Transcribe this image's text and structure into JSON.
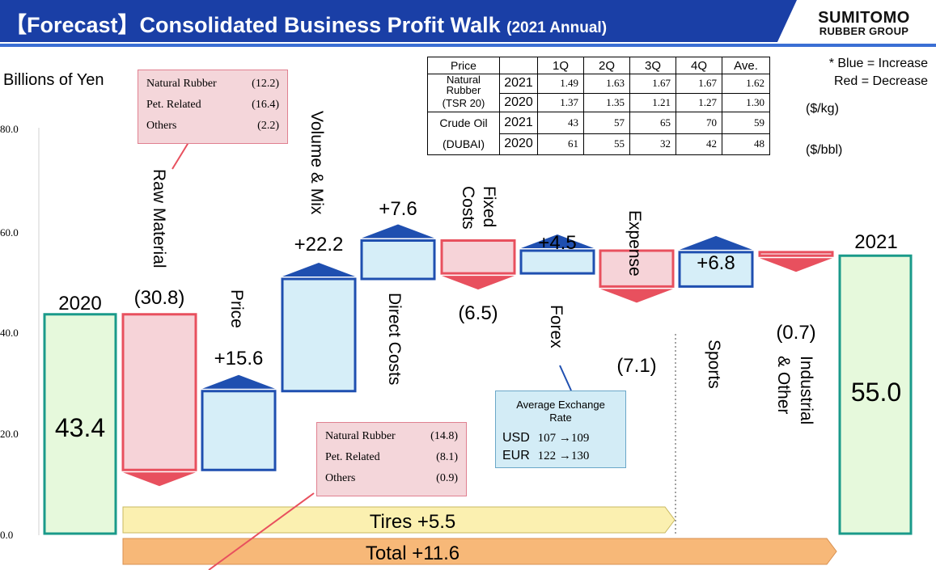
{
  "header": {
    "title": "【Forecast】Consolidated Business Profit Walk",
    "year": "(2021 Annual)",
    "logo_line1": "SUMITOMO",
    "logo_line2": "RUBBER GROUP",
    "bar_color": "#1a3fa6"
  },
  "note": {
    "line1": "* Blue = Increase",
    "line2": "Red = Decrease"
  },
  "price_table": {
    "header": [
      "Price",
      "",
      "1Q",
      "2Q",
      "3Q",
      "4Q",
      "Ave."
    ],
    "rubber_label": [
      "Natural",
      "Rubber",
      "(TSR 20)"
    ],
    "oil_label": [
      "Crude Oil",
      "(DUBAI)"
    ],
    "rubber_rows": [
      {
        "year": "2021",
        "values": [
          "1.49",
          "1.63",
          "1.67",
          "1.67",
          "1.62"
        ]
      },
      {
        "year": "2020",
        "values": [
          "1.37",
          "1.35",
          "1.21",
          "1.27",
          "1.30"
        ]
      }
    ],
    "oil_rows": [
      {
        "year": "2021",
        "values": [
          "43",
          "57",
          "65",
          "70",
          "59"
        ]
      },
      {
        "year": "2020",
        "values": [
          "61",
          "55",
          "32",
          "42",
          "48"
        ]
      }
    ],
    "rubber_unit": "($/kg)",
    "oil_unit": "($/bbl)"
  },
  "callout_raw_material": {
    "rows": [
      {
        "label": "Natural Rubber",
        "value": "(12.2)"
      },
      {
        "label": "Pet. Related",
        "value": "(16.4)"
      },
      {
        "label": "Others",
        "value": "(2.2)"
      }
    ]
  },
  "callout_direct_costs": {
    "rows": [
      {
        "label": "Natural Rubber",
        "value": "(14.8)"
      },
      {
        "label": "Pet. Related",
        "value": "(8.1)"
      },
      {
        "label": "Others",
        "value": "(0.9)"
      }
    ]
  },
  "fx_box": {
    "title_line1": "Average Exchange",
    "title_line2": "Rate",
    "rows": [
      {
        "ccy": "USD",
        "text": "107 →109"
      },
      {
        "ccy": "EUR",
        "text": "122 →130"
      }
    ]
  },
  "summary": {
    "tires": "Tires   +5.5",
    "total": "Total   +11.6"
  },
  "chart_data": {
    "type": "waterfall",
    "ylabel": "Billions of Yen",
    "ylim": [
      0,
      80
    ],
    "yticks": [
      "80.0",
      "60.0",
      "40.0",
      "20.0",
      "0.0"
    ],
    "colors": {
      "increase_fill": "#d6eef8",
      "increase_edge": "#1f4fb0",
      "decrease_fill": "#f6d3d8",
      "decrease_edge": "#e8505e",
      "total_fill": "#e6f9dc",
      "total_edge": "#1a9a8a",
      "tires_bar": "#fbf0b0",
      "total_bar": "#f7b878"
    },
    "steps": [
      {
        "label": "2020",
        "value": 43.4,
        "kind": "total",
        "value_label": "43.4"
      },
      {
        "label": "Raw Material",
        "value": -30.8,
        "kind": "decrease",
        "value_label": "(30.8)"
      },
      {
        "label": "Price",
        "value": 15.6,
        "kind": "increase",
        "value_label": "+15.6"
      },
      {
        "label": "Volume & Mix",
        "value": 22.2,
        "kind": "increase",
        "value_label": "+22.2"
      },
      {
        "label": "Direct Costs",
        "value": 7.6,
        "kind": "increase",
        "value_label": "+7.6"
      },
      {
        "label": "Fixed Costs",
        "value": -6.5,
        "kind": "decrease",
        "value_label": "(6.5)"
      },
      {
        "label": "Forex",
        "value": 4.5,
        "kind": "increase",
        "value_label": "+4.5"
      },
      {
        "label": "Expense",
        "value": -7.1,
        "kind": "decrease",
        "value_label": "(7.1)"
      },
      {
        "label": "Sports",
        "value": 6.8,
        "kind": "increase",
        "value_label": "+6.8"
      },
      {
        "label": "Industrial & Other",
        "value": -0.7,
        "kind": "decrease",
        "value_label": "(0.7)"
      },
      {
        "label": "2021",
        "value": 55.0,
        "kind": "total",
        "value_label": "55.0"
      }
    ]
  }
}
